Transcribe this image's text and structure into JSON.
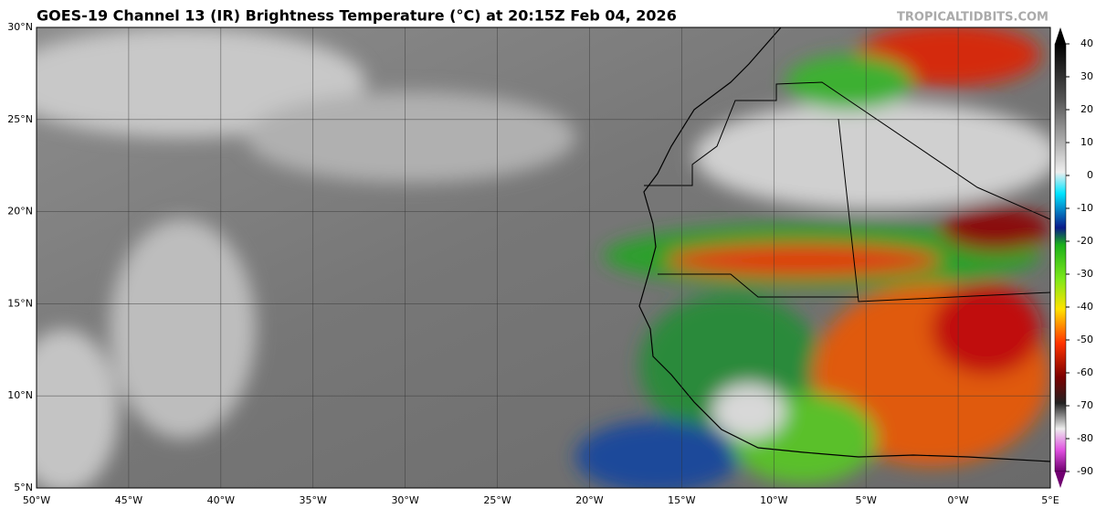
{
  "header": {
    "title": "GOES-19 Channel 13 (IR) Brightness Temperature (°C) at 20:15Z Feb 04, 2026",
    "credit": "TROPICALTIDBITS.COM"
  },
  "map": {
    "lat_labels": [
      "30°N",
      "25°N",
      "20°N",
      "15°N",
      "10°N",
      "5°N"
    ],
    "lon_labels": [
      "50°W",
      "45°W",
      "40°W",
      "35°W",
      "30°W",
      "25°W",
      "20°W",
      "15°W",
      "10°W",
      "5°W",
      "0°W",
      "5°E"
    ]
  },
  "colorbar": {
    "ticks": [
      40,
      30,
      20,
      10,
      0,
      -10,
      -20,
      -30,
      -40,
      -50,
      -60,
      -70,
      -80,
      -90
    ]
  }
}
